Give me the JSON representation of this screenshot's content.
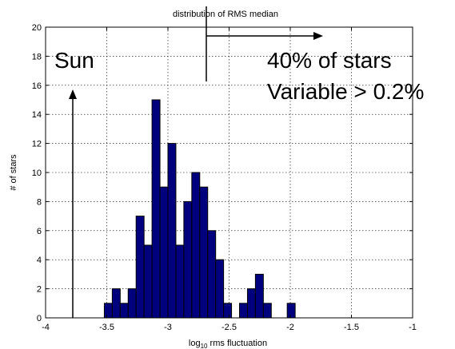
{
  "chart_data": {
    "type": "bar",
    "title": "distribution of RMS median",
    "xlabel_prefix": "log",
    "xlabel_sub": "10",
    "xlabel_rest": " rms fluctuation",
    "ylabel": "# of stars",
    "xlim": [
      -4,
      -1
    ],
    "ylim": [
      0,
      20
    ],
    "xticks": [
      -4,
      -3.5,
      -3,
      -2.5,
      -2,
      -1.5,
      -1
    ],
    "yticks": [
      0,
      2,
      4,
      6,
      8,
      10,
      12,
      14,
      16,
      18,
      20
    ],
    "xtick_labels": [
      "-4",
      "-3.5",
      "-3",
      "-2.5",
      "-2",
      "-1.5",
      "-1"
    ],
    "ytick_labels": [
      "0",
      "2",
      "4",
      "6",
      "8",
      "10",
      "12",
      "14",
      "16",
      "18",
      "20"
    ],
    "grid": true,
    "bin_width": 0.065,
    "bin_edges_start": -3.52,
    "values": [
      1,
      2,
      1,
      2,
      7,
      5,
      15,
      9,
      12,
      5,
      8,
      10,
      9,
      6,
      4,
      1,
      0,
      1,
      2,
      3,
      1,
      0,
      0,
      1
    ],
    "bar_color": "#00007f",
    "annotations": {
      "sun": "Sun",
      "stars": "40% of stars",
      "variable": "Variable > 0.2%"
    }
  }
}
